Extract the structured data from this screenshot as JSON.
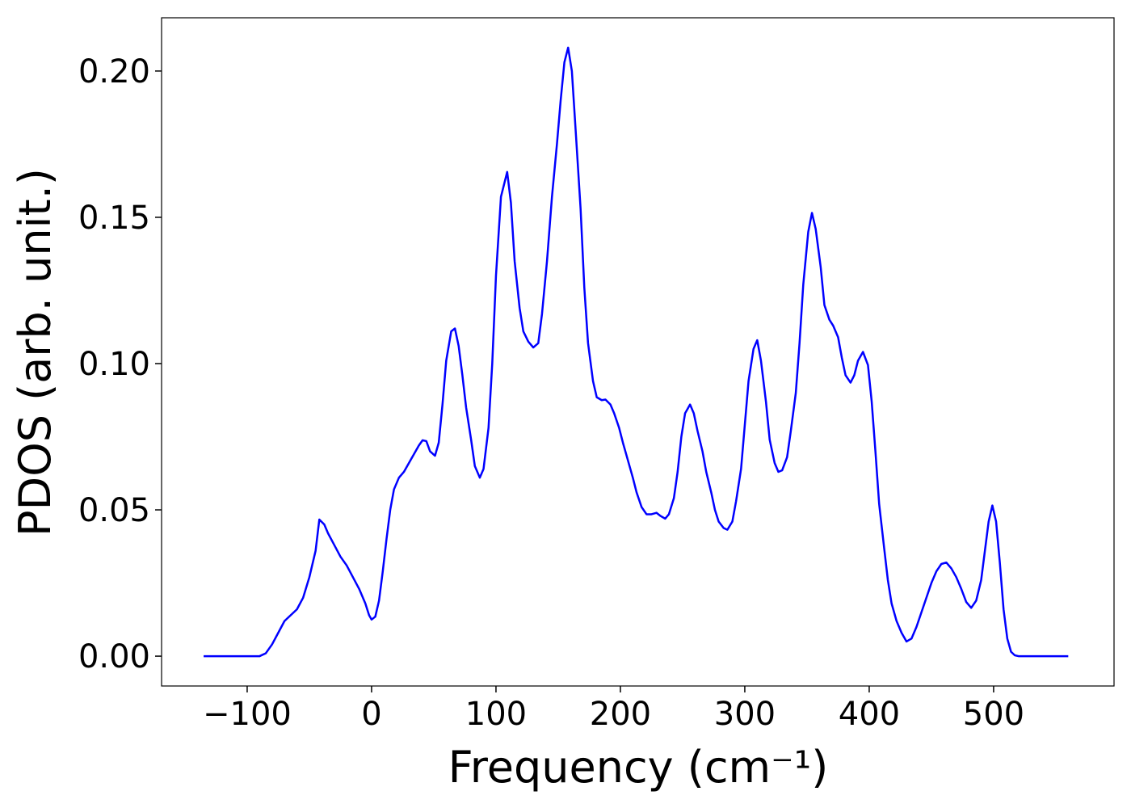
{
  "chart_data": {
    "type": "line",
    "xlabel": "Frequency (cm⁻¹)",
    "ylabel": "PDOS (arb. unit.)",
    "xlim": [
      -168.8,
      596.8
    ],
    "ylim": [
      -0.0102,
      0.2182
    ],
    "xticks": [
      {
        "value": -100,
        "label": "−100"
      },
      0,
      100,
      200,
      300,
      400,
      500
    ],
    "yticks": [
      {
        "value": 0,
        "label": "0.00"
      },
      {
        "value": 0.05,
        "label": "0.05"
      },
      {
        "value": 0.1,
        "label": "0.10"
      },
      {
        "value": 0.15,
        "label": "0.15"
      },
      {
        "value": 0.2,
        "label": "0.20"
      }
    ],
    "series": [
      {
        "color": "#0000ff",
        "x": [
          -135,
          -120,
          -105,
          -90,
          -85,
          -80,
          -75,
          -70,
          -65,
          -60,
          -55,
          -50,
          -45,
          -42,
          -38,
          -35,
          -30,
          -25,
          -20,
          -15,
          -10,
          -5,
          -2,
          0,
          3,
          6,
          9,
          12,
          15,
          18,
          22,
          26,
          30,
          34,
          38,
          41,
          44,
          47,
          51,
          54,
          57,
          60,
          64,
          67,
          70,
          73,
          76,
          80,
          83,
          87,
          90,
          94,
          97,
          100,
          104,
          109,
          112,
          115,
          119,
          122,
          126,
          130,
          134,
          137,
          141,
          145,
          149,
          152,
          155,
          158,
          161,
          164,
          168,
          171,
          174,
          178,
          181,
          185,
          188,
          192,
          195,
          199,
          202,
          206,
          210,
          213,
          217,
          221,
          225,
          229,
          232,
          236,
          239,
          243,
          246,
          249,
          252,
          256,
          259,
          262,
          266,
          269,
          273,
          276,
          279,
          283,
          286,
          290,
          293,
          297,
          300,
          303,
          307,
          310,
          313,
          317,
          320,
          324,
          327,
          330,
          334,
          337,
          341,
          344,
          347,
          351,
          354,
          357,
          361,
          364,
          368,
          371,
          375,
          378,
          381,
          385,
          388,
          391,
          395,
          399,
          402,
          405,
          408,
          412,
          415,
          418,
          422,
          426,
          430,
          434,
          438,
          442,
          446,
          450,
          454,
          458,
          462,
          466,
          470,
          474,
          478,
          482,
          486,
          490,
          493,
          496,
          499,
          502,
          505,
          508,
          511,
          514,
          517,
          520,
          540,
          560
        ],
        "values": [
          0,
          0,
          0,
          0,
          0.001,
          0.004,
          0.008,
          0.012,
          0.014,
          0.016,
          0.02,
          0.027,
          0.036,
          0.0467,
          0.045,
          0.042,
          0.038,
          0.034,
          0.031,
          0.027,
          0.023,
          0.018,
          0.014,
          0.0125,
          0.0135,
          0.019,
          0.029,
          0.04,
          0.05,
          0.057,
          0.061,
          0.063,
          0.066,
          0.069,
          0.072,
          0.0738,
          0.0735,
          0.07,
          0.0685,
          0.073,
          0.086,
          0.101,
          0.111,
          0.112,
          0.106,
          0.096,
          0.085,
          0.074,
          0.065,
          0.061,
          0.064,
          0.078,
          0.1,
          0.13,
          0.157,
          0.1655,
          0.155,
          0.135,
          0.119,
          0.111,
          0.1075,
          0.1055,
          0.107,
          0.117,
          0.135,
          0.157,
          0.175,
          0.19,
          0.203,
          0.208,
          0.2,
          0.18,
          0.153,
          0.126,
          0.107,
          0.094,
          0.0885,
          0.0875,
          0.0877,
          0.086,
          0.083,
          0.078,
          0.073,
          0.067,
          0.061,
          0.056,
          0.051,
          0.0485,
          0.0485,
          0.049,
          0.048,
          0.047,
          0.0485,
          0.054,
          0.063,
          0.075,
          0.083,
          0.086,
          0.083,
          0.077,
          0.07,
          0.063,
          0.056,
          0.05,
          0.046,
          0.0438,
          0.0432,
          0.046,
          0.053,
          0.064,
          0.079,
          0.094,
          0.105,
          0.108,
          0.101,
          0.087,
          0.074,
          0.066,
          0.063,
          0.0635,
          0.068,
          0.077,
          0.09,
          0.107,
          0.127,
          0.145,
          0.1515,
          0.146,
          0.133,
          0.12,
          0.115,
          0.113,
          0.109,
          0.102,
          0.096,
          0.0935,
          0.096,
          0.101,
          0.104,
          0.0995,
          0.087,
          0.07,
          0.052,
          0.037,
          0.026,
          0.018,
          0.012,
          0.008,
          0.005,
          0.006,
          0.01,
          0.015,
          0.02,
          0.025,
          0.029,
          0.0315,
          0.032,
          0.03,
          0.027,
          0.023,
          0.0185,
          0.0165,
          0.019,
          0.026,
          0.036,
          0.046,
          0.0515,
          0.046,
          0.032,
          0.016,
          0.006,
          0.0015,
          0.0003,
          0,
          0,
          0
        ]
      }
    ]
  }
}
